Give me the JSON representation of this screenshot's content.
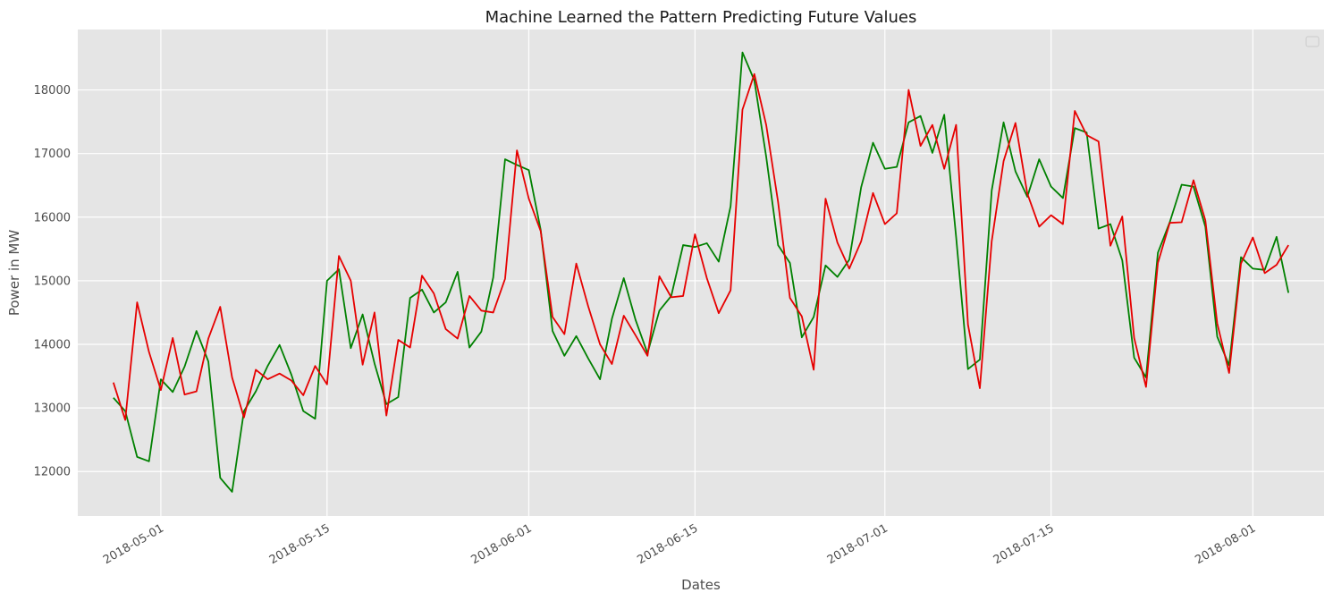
{
  "chart_data": {
    "type": "line",
    "title": "Machine Learned the Pattern Predicting Future Values",
    "xlabel": "Dates",
    "ylabel": "Power in MW",
    "x_ticks": [
      "2018-05-01",
      "2018-05-15",
      "2018-06-01",
      "2018-06-15",
      "2018-07-01",
      "2018-07-15",
      "2018-08-01"
    ],
    "y_ticks": [
      12000,
      13000,
      14000,
      15000,
      16000,
      17000,
      18000
    ],
    "xlim": [
      "2018-04-24",
      "2018-08-07"
    ],
    "ylim": [
      11300,
      18950
    ],
    "grid": true,
    "legend": "top-right (empty)",
    "x_start": "2018-04-27",
    "series": [
      {
        "color": "#008000",
        "values": [
          13160,
          12950,
          12230,
          12160,
          13450,
          13250,
          13650,
          14210,
          13730,
          11900,
          11680,
          12950,
          13260,
          13660,
          13990,
          13520,
          12950,
          12830,
          15000,
          15180,
          13940,
          14470,
          13700,
          13060,
          13170,
          14730,
          14860,
          14500,
          14660,
          15140,
          13950,
          14200,
          15050,
          16910,
          16820,
          16740,
          15800,
          14210,
          13820,
          14130,
          13780,
          13450,
          14400,
          15040,
          14380,
          13860,
          14530,
          14760,
          15560,
          15530,
          15590,
          15300,
          16170,
          18590,
          18150,
          16950,
          15560,
          15280,
          14110,
          14430,
          15240,
          15060,
          15330,
          16470,
          17170,
          16760,
          16790,
          17490,
          17590,
          17010,
          17610,
          15690,
          13610,
          13760,
          16420,
          17490,
          16720,
          16320,
          16910,
          16480,
          16300,
          17400,
          17330,
          15820,
          15890,
          15320,
          13790,
          13480,
          15440,
          15920,
          16510,
          16480,
          15850,
          14120,
          13670,
          15370,
          15190,
          15170,
          15690,
          14810
        ]
      },
      {
        "color": "#e60000",
        "values": [
          13400,
          12810,
          14660,
          13880,
          13280,
          14100,
          13210,
          13260,
          14090,
          14590,
          13480,
          12850,
          13600,
          13450,
          13540,
          13430,
          13200,
          13660,
          13370,
          15390,
          15000,
          13680,
          14500,
          12880,
          14070,
          13950,
          15080,
          14800,
          14240,
          14090,
          14760,
          14530,
          14500,
          15030,
          17050,
          16290,
          15780,
          14430,
          14160,
          15270,
          14600,
          14000,
          13690,
          14450,
          14140,
          13820,
          15070,
          14740,
          14760,
          15730,
          15040,
          14490,
          14850,
          17690,
          18250,
          17450,
          16240,
          14730,
          14440,
          13600,
          16290,
          15600,
          15190,
          15620,
          16380,
          15890,
          16060,
          18000,
          17120,
          17450,
          16760,
          17450,
          14310,
          13310,
          15620,
          16880,
          17480,
          16370,
          15850,
          16030,
          15890,
          17670,
          17290,
          17190,
          15550,
          16010,
          14100,
          13330,
          15280,
          15910,
          15920,
          16580,
          15950,
          14330,
          13550,
          15270,
          15680,
          15120,
          15250,
          15560
        ]
      }
    ]
  }
}
